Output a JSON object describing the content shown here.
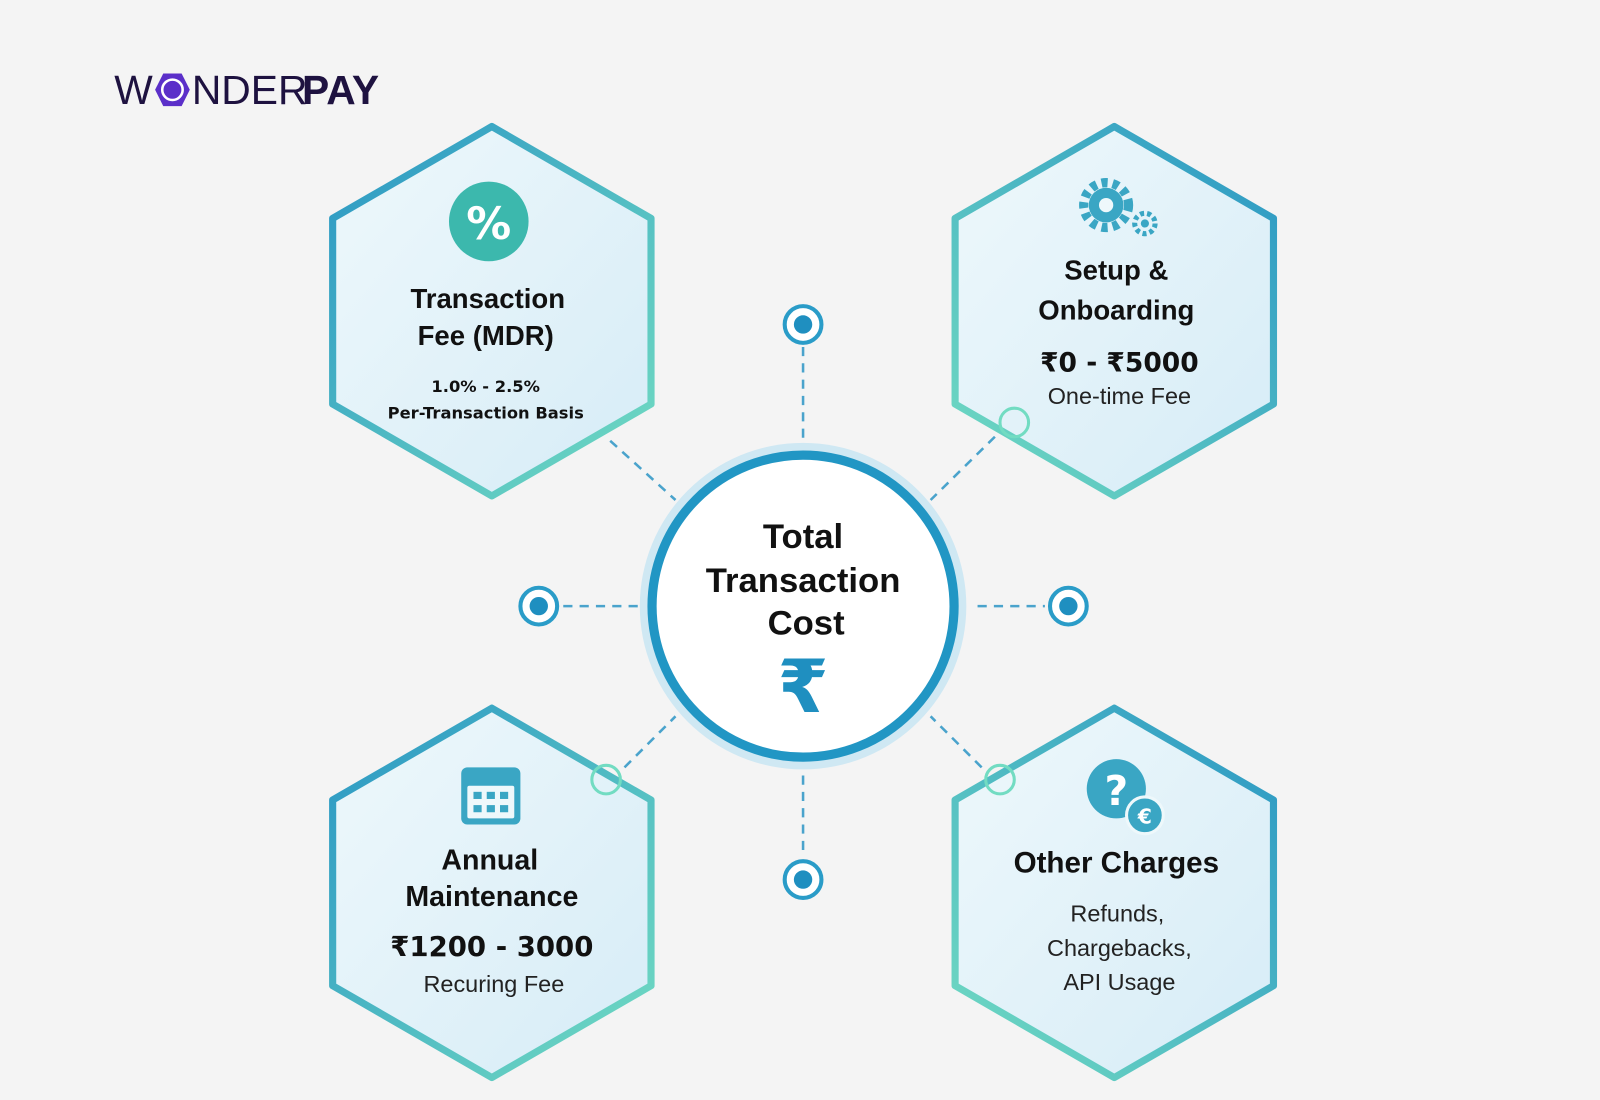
{
  "brand": {
    "logo_text_left": "W",
    "logo_text_mid": "NDER",
    "logo_text_right": "PAY",
    "primary": "#1e1240",
    "accent": "#5b2fc9"
  },
  "center": {
    "line1": "Total",
    "line2": "Transaction",
    "line3": "Cost",
    "symbol": "₹",
    "icon": "rupee-icon"
  },
  "colors": {
    "blue": "#2a9cc8",
    "teal": "#6ed8c0",
    "fill": "#e3f3f9"
  },
  "cards": [
    {
      "icon": "percent-icon",
      "icon_text": "%",
      "title1": "Transaction",
      "title2": "Fee (MDR)",
      "value": "1.0% - 2.5%",
      "note": "Per-Transaction Basis"
    },
    {
      "icon": "gears-icon",
      "title1": "Setup &",
      "title2": "Onboarding",
      "value": "₹0 - ₹5000",
      "note": "One-time Fee"
    },
    {
      "icon": "calendar-icon",
      "title1": "Annual",
      "title2": "Maintenance",
      "value": "₹1200 - 3000",
      "note": "Recuring Fee"
    },
    {
      "icon": "question-euro-icon",
      "icon_text": "?",
      "icon_text2": "€",
      "title1": "Other Charges",
      "note1": "Refunds,",
      "note2": "Chargebacks,",
      "note3": "API Usage"
    }
  ]
}
